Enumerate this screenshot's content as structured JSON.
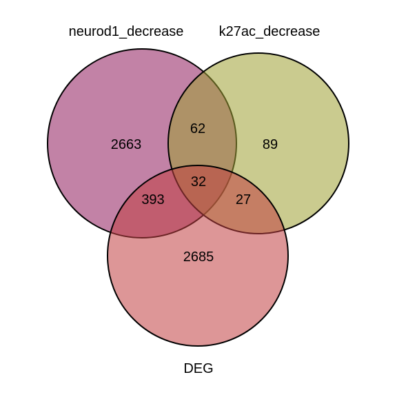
{
  "sets": [
    {
      "key": "a",
      "label": "neurod1_decrease",
      "color": "#8f1c5c"
    },
    {
      "key": "b",
      "label": "k27ac_decrease",
      "color": "#9ea033"
    },
    {
      "key": "c",
      "label": "DEG",
      "color": "#c13f42"
    }
  ],
  "fill_opacity": 0.55,
  "regions": {
    "a_only": "2663",
    "b_only": "89",
    "c_only": "2685",
    "ab_only": "62",
    "ac_only": "393",
    "bc_only": "27",
    "abc": "32"
  }
}
